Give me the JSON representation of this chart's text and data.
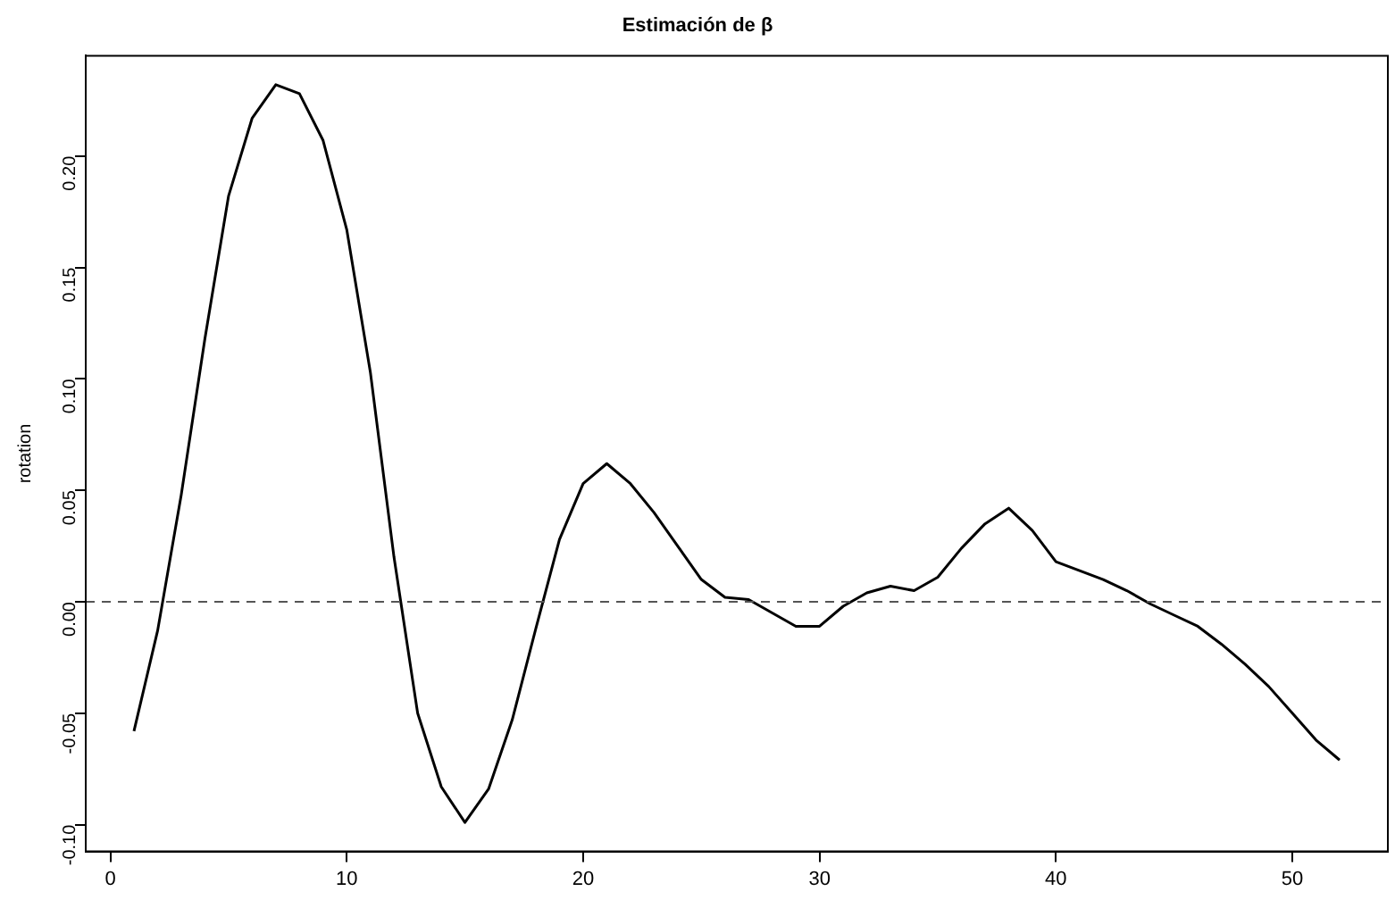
{
  "chart_data": {
    "type": "line",
    "title": "Estimación de β",
    "ylabel": "rotation",
    "x": [
      1,
      2,
      3,
      4,
      5,
      6,
      7,
      8,
      9,
      10,
      11,
      12,
      13,
      14,
      15,
      16,
      17,
      18,
      19,
      20,
      21,
      22,
      23,
      24,
      25,
      26,
      27,
      28,
      29,
      30,
      31,
      32,
      33,
      34,
      35,
      36,
      37,
      38,
      39,
      40,
      41,
      42,
      43,
      44,
      45,
      46,
      47,
      48,
      49,
      50,
      51,
      52
    ],
    "series": [
      {
        "color": "#000000",
        "values": [
          -0.058,
          -0.013,
          0.048,
          0.118,
          0.182,
          0.217,
          0.232,
          0.228,
          0.207,
          0.167,
          0.103,
          0.02,
          -0.05,
          -0.083,
          -0.099,
          -0.084,
          -0.053,
          -0.012,
          0.028,
          0.053,
          0.062,
          0.053,
          0.04,
          0.025,
          0.01,
          0.002,
          0.001,
          -0.005,
          -0.011,
          -0.011,
          -0.002,
          0.004,
          0.007,
          0.005,
          0.011,
          0.024,
          0.035,
          0.042,
          0.032,
          0.018,
          0.014,
          0.01,
          0.005,
          -0.001,
          -0.006,
          -0.011,
          -0.019,
          -0.028,
          -0.038,
          -0.05,
          -0.062,
          -0.071
        ]
      }
    ],
    "xlim": [
      -1.04,
      54.04
    ],
    "ylim": [
      -0.112,
      0.245
    ],
    "xticks": [
      0,
      10,
      20,
      30,
      40,
      50
    ],
    "yticks": [
      {
        "value": -0.1,
        "label": "-0.10"
      },
      {
        "value": -0.05,
        "label": "-0.05"
      },
      {
        "value": 0,
        "label": "0.00"
      },
      {
        "value": 0.05,
        "label": "0.05"
      },
      {
        "value": 0.1,
        "label": "0.10"
      },
      {
        "value": 0.15,
        "label": "0.15"
      },
      {
        "value": 0.2,
        "label": "0.20"
      }
    ],
    "ref_lines": [
      {
        "axis": "y",
        "value": 0,
        "color": "#555555",
        "line_style": "dashed"
      }
    ],
    "grid": false,
    "legend": false,
    "marker": "none",
    "line_style": "solid"
  }
}
